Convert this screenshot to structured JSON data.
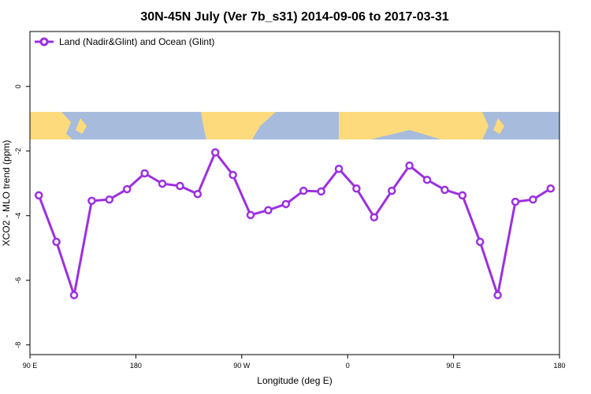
{
  "chart_data": {
    "type": "line",
    "title": "30N-45N July (Ver 7b_s31)   2014-09-06 to 2017-03-31",
    "x_label": "Longitude (deg E)",
    "y_label": "XCO2 - MLO trend (ppm)",
    "x": [
      97.5,
      112.5,
      127.5,
      142.5,
      157.5,
      172.5,
      187.5,
      202.5,
      217.5,
      232.5,
      247.5,
      262.5,
      277.5,
      292.5,
      307.5,
      322.5,
      337.5,
      352.5,
      367.5,
      382.5,
      397.5,
      412.5,
      427.5,
      442.5,
      457.5,
      472.5,
      487.5,
      502.5,
      517.5,
      532.5
    ],
    "series": [
      {
        "name": "Land (Nadir&Glint) and Ocean (Glint)",
        "color": "#9b30e0",
        "values": [
          -3.37,
          -4.81,
          -6.46,
          -3.54,
          -3.5,
          -3.18,
          -2.69,
          -3.01,
          -3.08,
          -3.33,
          -2.04,
          -2.74,
          -3.98,
          -3.83,
          -3.64,
          -3.23,
          -3.25,
          -2.55,
          -3.16,
          -4.05,
          -3.23,
          -2.45,
          -2.89,
          -3.2,
          -3.37,
          -4.81,
          -6.46,
          -3.57,
          -3.5,
          -3.16
        ]
      }
    ],
    "xlim": [
      90,
      540
    ],
    "xticks": [
      {
        "value": 90,
        "label": "90 E"
      },
      180,
      {
        "value": 270,
        "label": "90 W"
      },
      {
        "value": 360,
        "label": "0"
      },
      {
        "value": 450,
        "label": "90 E"
      },
      {
        "value": 540,
        "label": "180"
      }
    ],
    "ylim": [
      -8.3,
      1.7
    ],
    "yticks": [
      0,
      -2,
      -4,
      -6,
      -8
    ],
    "legend": "top-left"
  }
}
